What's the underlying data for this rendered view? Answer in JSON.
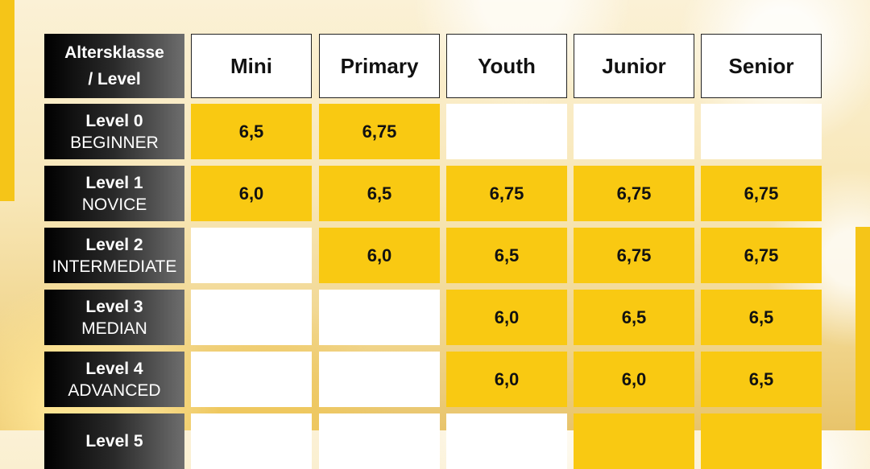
{
  "corner": {
    "line1": "Altersklasse",
    "line2": "/  Level"
  },
  "columns": [
    "Mini",
    "Primary",
    "Youth",
    "Junior",
    "Senior"
  ],
  "rows": [
    {
      "level": "Level 0",
      "name": "BEGINNER",
      "values": [
        "6,5",
        "6,75",
        "",
        "",
        ""
      ]
    },
    {
      "level": "Level 1",
      "name": "NOVICE",
      "values": [
        "6,0",
        "6,5",
        "6,75",
        "6,75",
        "6,75"
      ]
    },
    {
      "level": "Level 2",
      "name": "INTERMEDIATE",
      "values": [
        "",
        "6,0",
        "6,5",
        "6,75",
        "6,75"
      ]
    },
    {
      "level": "Level 3",
      "name": "MEDIAN",
      "values": [
        "",
        "",
        "6,0",
        "6,5",
        "6,5"
      ]
    },
    {
      "level": "Level  4",
      "name": "ADVANCED",
      "values": [
        "",
        "",
        "6,0",
        "6,0",
        "6,5"
      ]
    },
    {
      "level": "Level  5",
      "name": "",
      "values": [
        "",
        "",
        "",
        "",
        ""
      ],
      "filled": [
        false,
        false,
        false,
        true,
        true
      ]
    }
  ],
  "colors": {
    "filled": "#f9c912",
    "empty": "#ffffff",
    "header_dark": "#000000"
  }
}
